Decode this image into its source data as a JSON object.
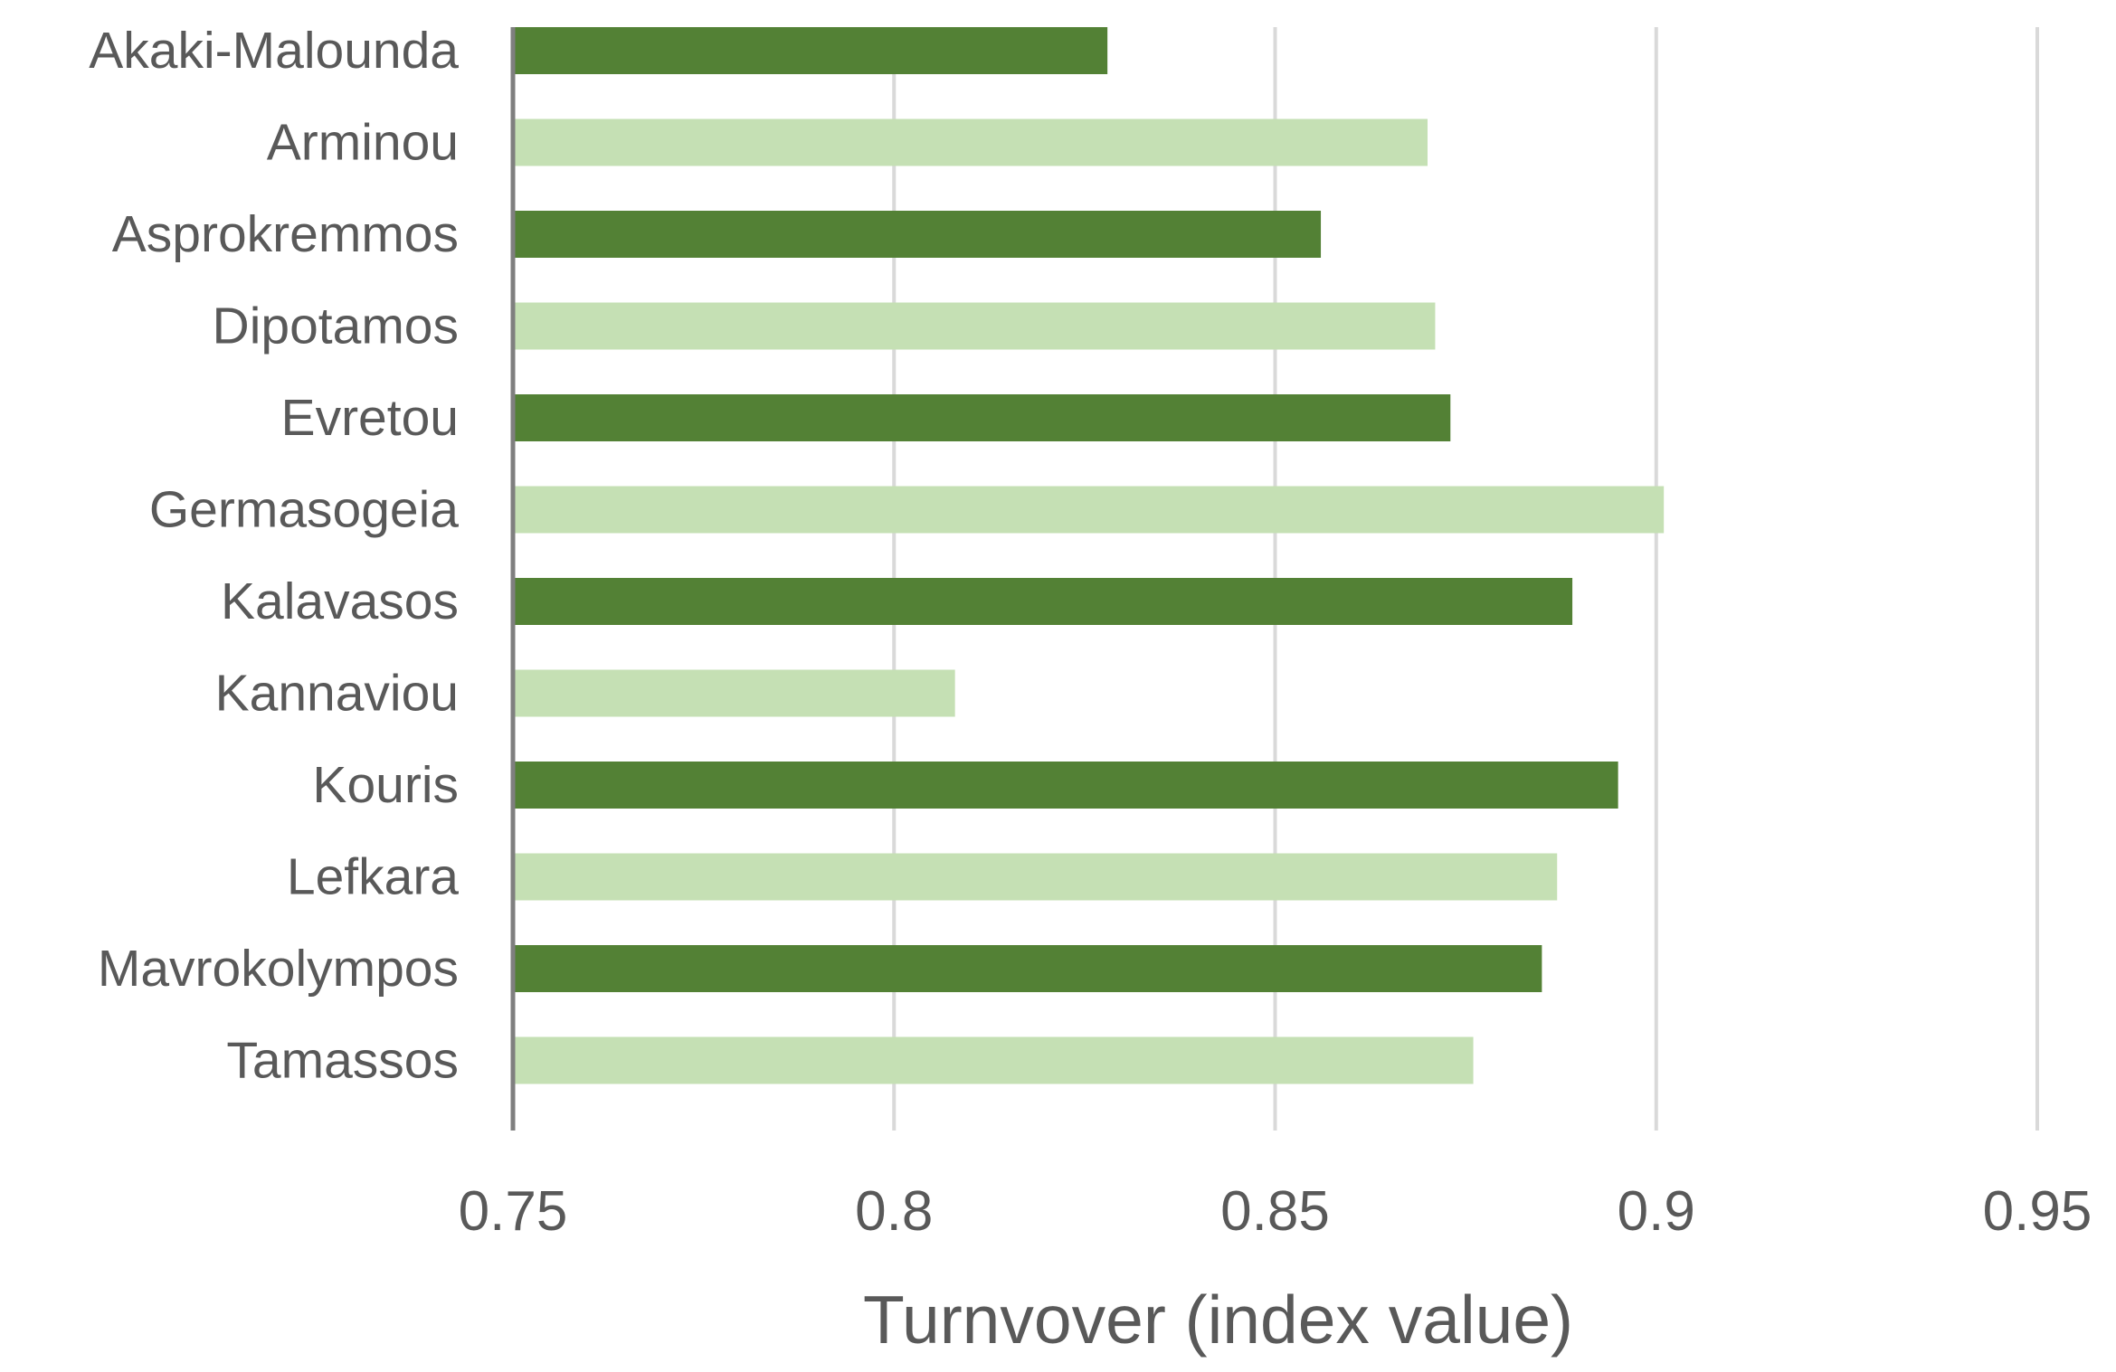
{
  "chart_data": {
    "type": "bar",
    "orientation": "horizontal",
    "title": "",
    "xlabel": "Turnvover (index value)",
    "ylabel": "",
    "xlim": [
      0.75,
      0.95
    ],
    "x_ticks": [
      "0.75",
      "0.8",
      "0.85",
      "0.9",
      "0.95"
    ],
    "x_tick_values": [
      0.75,
      0.8,
      0.85,
      0.9,
      0.95
    ],
    "grid": "vertical",
    "legend": "none",
    "categories": [
      "Akaki-Malounda",
      "Arminou",
      "Asprokremmos",
      "Dipotamos",
      "Evretou",
      "Germasogeia",
      "Kalavasos",
      "Kannaviou",
      "Kouris",
      "Lefkara",
      "Mavrokolympos",
      "Tamassos"
    ],
    "values": [
      0.828,
      0.87,
      0.856,
      0.871,
      0.873,
      0.901,
      0.889,
      0.808,
      0.895,
      0.887,
      0.885,
      0.876
    ],
    "colors": [
      "#538135",
      "#c5e0b4",
      "#538135",
      "#c5e0b4",
      "#538135",
      "#c5e0b4",
      "#538135",
      "#c5e0b4",
      "#538135",
      "#c5e0b4",
      "#538135",
      "#c5e0b4"
    ]
  },
  "style": {
    "grid_color": "#d9d9d9",
    "axis_color": "#7f7f7f"
  }
}
